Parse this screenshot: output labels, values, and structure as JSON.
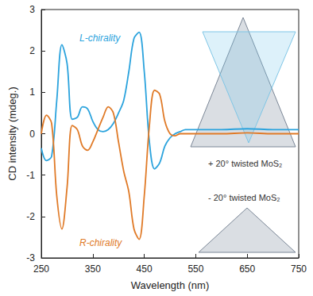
{
  "chart_data": {
    "type": "line",
    "x_label": "Wavelength (nm)",
    "y_label": "CD intensity (mdeg.)",
    "x": [
      250,
      260,
      270,
      280,
      290,
      300,
      310,
      320,
      330,
      340,
      350,
      360,
      370,
      380,
      390,
      400,
      410,
      420,
      430,
      440,
      450,
      460,
      470,
      480,
      490,
      500,
      510,
      520,
      530,
      540,
      550,
      600,
      650,
      700,
      750
    ],
    "series": [
      {
        "name": "L-chirality",
        "color": "#2ba3dd",
        "values": [
          -0.35,
          -0.65,
          -0.55,
          0.8,
          2.15,
          1.7,
          0.35,
          0.4,
          0.65,
          0.6,
          0.3,
          0.1,
          0.05,
          0.1,
          0.25,
          0.5,
          0.8,
          1.5,
          2.3,
          2.45,
          1.5,
          -0.2,
          -0.85,
          -0.7,
          -0.3,
          -0.1,
          0.0,
          0.05,
          0.1,
          0.1,
          0.1,
          0.1,
          0.12,
          0.1,
          0.1
        ]
      },
      {
        "name": "R-chirality",
        "color": "#e07a27",
        "values": [
          0.0,
          0.45,
          0.25,
          -1.5,
          -2.3,
          -1.3,
          0.2,
          0.1,
          -0.3,
          -0.4,
          -0.2,
          0.1,
          0.4,
          0.65,
          0.5,
          -0.2,
          -0.9,
          -1.4,
          -2.3,
          -2.55,
          -1.5,
          0.2,
          1.05,
          0.95,
          0.3,
          0.0,
          -0.05,
          0.0,
          0.0,
          0.0,
          0.0,
          0.0,
          0.02,
          0.0,
          0.0
        ]
      }
    ],
    "annotations": [
      "+ 20° twisted MoS₂",
      "- 20° twisted MoS₂"
    ],
    "xlim": [
      250,
      750
    ],
    "xticks": [
      250,
      350,
      450,
      550,
      650,
      750
    ],
    "ylim": [
      -3,
      3
    ],
    "yticks": [
      -3,
      -2,
      -1,
      0,
      1,
      2,
      3
    ],
    "grid": false,
    "legend": false
  }
}
